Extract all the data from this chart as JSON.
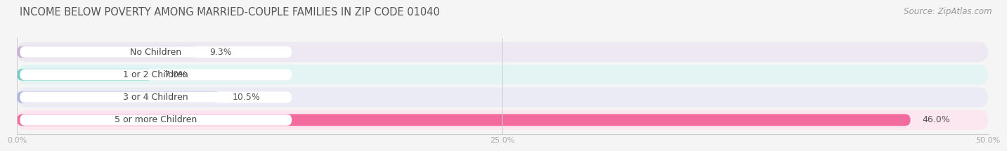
{
  "title": "INCOME BELOW POVERTY AMONG MARRIED-COUPLE FAMILIES IN ZIP CODE 01040",
  "source": "Source: ZipAtlas.com",
  "categories": [
    "No Children",
    "1 or 2 Children",
    "3 or 4 Children",
    "5 or more Children"
  ],
  "values": [
    9.3,
    7.0,
    10.5,
    46.0
  ],
  "bar_colors": [
    "#c9aed6",
    "#72caca",
    "#abb5df",
    "#f26a9e"
  ],
  "row_bg_colors": [
    "#ede8f2",
    "#e4f4f4",
    "#eaebf5",
    "#fce6ef"
  ],
  "xlim": [
    0,
    50
  ],
  "xticks": [
    0,
    25,
    50
  ],
  "xtick_labels": [
    "0.0%",
    "25.0%",
    "50.0%"
  ],
  "title_fontsize": 10.5,
  "source_fontsize": 8.5,
  "label_fontsize": 9,
  "value_fontsize": 9,
  "background_color": "#f5f5f5"
}
